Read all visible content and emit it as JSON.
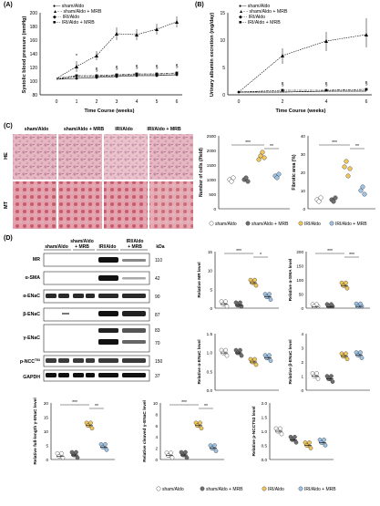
{
  "panels": {
    "A": {
      "label": "(A)",
      "legend": [
        "sham/Aldo",
        "sham/Aldo + MRB",
        "IRI/Aldo",
        "IRI/Aldo + MRB"
      ],
      "ylabel": "Systolic blood pressure (mmHg)",
      "xlabel": "Time Course (weeks)",
      "yticks": [
        "200",
        "180",
        "160",
        "140",
        "120",
        "100",
        "80"
      ],
      "xticks": [
        "0",
        "1",
        "2",
        "3",
        "4",
        "5",
        "6"
      ],
      "sig": [
        "*",
        "§",
        "§",
        "§",
        "§",
        "§"
      ]
    },
    "B": {
      "label": "(B)",
      "legend": [
        "sham/Aldo",
        "sham/Aldo + MRB",
        "IRI/Aldo",
        "IRI/Aldo + MRB"
      ],
      "ylabel": "Urinary albumin excretion (mg/day)",
      "xlabel": "Time Course (weeks)",
      "yticks": [
        "15",
        "10",
        "5",
        "0"
      ],
      "xticks": [
        "0",
        "2",
        "4",
        "6"
      ],
      "sig": [
        "§",
        "§",
        "§"
      ]
    },
    "C": {
      "label": "(C)",
      "cols": [
        "sham/Aldo",
        "sham/Aldo + MRB",
        "IRI/Aldo",
        "IRI/Aldo + MRB"
      ],
      "rows": [
        "HE",
        "MT"
      ],
      "cells_ylabel": "Number of cells (/field)",
      "cells_yticks": [
        "2500",
        "2000",
        "1500",
        "1000",
        "500",
        "0"
      ],
      "fib_ylabel": "Fibrotic area (%)",
      "fib_yticks": [
        "40",
        "30",
        "20",
        "10",
        "0"
      ],
      "legend": [
        "sham/Aldo",
        "sham/Aldo + MRB",
        "IRI/Aldo",
        "IRI/Aldo + MRB"
      ],
      "sig": [
        "***",
        "**"
      ]
    },
    "D": {
      "label": "(D)",
      "blot_cols": [
        "sham/Aldo",
        "sham/Aldo\n+ MRB",
        "IRI/Aldo",
        "IRI/Aldo\n+ MRB"
      ],
      "kda_label": "kDa",
      "blots": [
        {
          "name": "MR",
          "kda": [
            "110"
          ]
        },
        {
          "name": "α-SMA",
          "kda": [
            "42"
          ]
        },
        {
          "name": "α-ENaC",
          "kda": [
            "90"
          ]
        },
        {
          "name": "β-ENaC",
          "kda": [
            "87"
          ]
        },
        {
          "name": "γ-ENaC",
          "kda": [
            "83",
            "70"
          ]
        },
        {
          "name": "p-NCC",
          "sup": "T53",
          "kda": [
            "150"
          ]
        },
        {
          "name": "GAPDH",
          "kda": [
            "37"
          ]
        }
      ],
      "bars": [
        {
          "ylabel": "Relative MR level",
          "yticks": [
            "15",
            "10",
            "5",
            "0"
          ],
          "sig": [
            "***",
            "*"
          ]
        },
        {
          "ylabel": "Relative α-SMA level",
          "yticks": [
            "200",
            "150",
            "100",
            "50",
            "0"
          ],
          "sig": [
            "***",
            "***"
          ]
        },
        {
          "ylabel": "Relative α-ENaC level",
          "yticks": [
            "1.5",
            "1.0",
            "0.5",
            "0.0"
          ],
          "sig": []
        },
        {
          "ylabel": "Relative β-ENaC level",
          "yticks": [
            "4",
            "3",
            "2",
            "1",
            "0"
          ],
          "sig": []
        },
        {
          "ylabel": "Relative full-length γ-ENaC level",
          "yticks": [
            "20",
            "15",
            "10",
            "5",
            "0"
          ],
          "sig": [
            "***",
            "**"
          ]
        },
        {
          "ylabel": "Relative cleaved γ-ENaC level",
          "yticks": [
            "10",
            "8",
            "6",
            "4",
            "2",
            "0"
          ],
          "sig": [
            "***",
            "**"
          ]
        },
        {
          "ylabel": "Relative p-NCCT53 level",
          "yticks": [
            "2.0",
            "1.5",
            "1.0",
            "0.5",
            "0.0"
          ],
          "sig": []
        }
      ],
      "legend": [
        "sham/Aldo",
        "sham/Aldo + MRB",
        "IRI/Aldo",
        "IRI/Aldo + MRB"
      ]
    }
  },
  "colors": {
    "g1": "#ffffff",
    "g2": "#6e6e6e",
    "g3": "#f2c75a",
    "g4": "#9ec3e6"
  }
}
